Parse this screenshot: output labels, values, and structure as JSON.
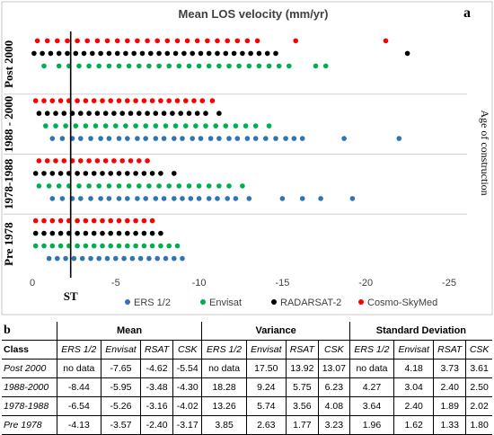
{
  "chart_data": {
    "type": "scatter",
    "title": "Mean LOS velocity (mm/yr)",
    "panel_label": "a",
    "right_label": "Age of construction",
    "reference_line_label": "ST",
    "reference_line_x": -2.3,
    "xlim": [
      0,
      -25
    ],
    "x_ticks": [
      "0",
      "-5",
      "-10",
      "-15",
      "-20",
      "-25"
    ],
    "groups": [
      "Post 2000",
      "1988 - 2000",
      "1978-1988",
      "Pre 1978"
    ],
    "series": [
      {
        "name": "ERS 1/2",
        "color": "#2e75b6",
        "data": {
          "Post 2000": [],
          "1988 - 2000": [
            -1.2,
            -1.8,
            -2.4,
            -2.9,
            -3.5,
            -4.1,
            -4.6,
            -5.2,
            -5.7,
            -6.3,
            -6.8,
            -7.4,
            -7.9,
            -8.5,
            -9.0,
            -9.6,
            -10.1,
            -10.7,
            -11.2,
            -11.8,
            -12.3,
            -12.9,
            -13.4,
            -14.0,
            -14.6,
            -15.2,
            -15.7,
            -16.2,
            -18.7,
            -22.0
          ],
          "1978-1988": [
            -1.2,
            -1.8,
            -2.4,
            -2.9,
            -3.5,
            -4.1,
            -4.6,
            -5.2,
            -5.7,
            -6.3,
            -6.8,
            -7.4,
            -7.9,
            -8.5,
            -9.0,
            -9.5,
            -10.0,
            -10.6,
            -11.1,
            -11.7,
            -12.2,
            -13.0,
            -15.0,
            -16.2,
            -17.3,
            -19.2
          ],
          "Pre 1978": [
            -1.0,
            -1.5,
            -2.0,
            -2.5,
            -3.0,
            -3.5,
            -4.0,
            -4.5,
            -5.0,
            -5.5,
            -6.0,
            -6.5,
            -7.0,
            -7.5,
            -8.0,
            -8.5,
            -9.0
          ]
        }
      },
      {
        "name": "Envisat",
        "color": "#00b050",
        "data": {
          "Post 2000": [
            -0.7,
            -1.6,
            -2.2,
            -2.8,
            -3.4,
            -4.0,
            -4.6,
            -5.2,
            -5.8,
            -6.4,
            -7.0,
            -7.6,
            -8.2,
            -8.8,
            -9.4,
            -10.0,
            -10.6,
            -11.2,
            -11.8,
            -12.4,
            -13.0,
            -13.6,
            -14.2,
            -14.8,
            -15.4,
            -17.0,
            -17.6
          ],
          "1988 - 2000": [
            -0.8,
            -1.4,
            -2.0,
            -2.6,
            -3.2,
            -3.8,
            -4.4,
            -5.0,
            -5.6,
            -6.2,
            -6.8,
            -7.4,
            -8.0,
            -8.6,
            -9.2,
            -9.8,
            -10.4,
            -11.0,
            -11.6,
            -12.2,
            -12.8,
            -13.4,
            -14.2
          ],
          "1978-1988": [
            -0.4,
            -1.0,
            -1.6,
            -2.2,
            -2.8,
            -3.4,
            -4.0,
            -4.6,
            -5.2,
            -5.8,
            -6.4,
            -7.0,
            -7.6,
            -8.2,
            -8.8,
            -9.4,
            -10.0,
            -10.6,
            -11.2,
            -11.8,
            -12.6
          ],
          "Pre 1978": [
            -0.2,
            -0.7,
            -1.2,
            -1.7,
            -2.2,
            -2.7,
            -3.2,
            -3.7,
            -4.2,
            -4.7,
            -5.2,
            -5.7,
            -6.2,
            -6.7,
            -7.2,
            -7.7,
            -8.2,
            -8.7
          ]
        }
      },
      {
        "name": "RADARSAT-2",
        "color": "#000000",
        "data": {
          "Post 2000": [
            -0.1,
            -0.6,
            -1.1,
            -1.6,
            -2.1,
            -2.6,
            -3.1,
            -3.6,
            -4.1,
            -4.6,
            -5.1,
            -5.6,
            -6.1,
            -6.6,
            -7.1,
            -7.6,
            -8.1,
            -8.6,
            -9.1,
            -9.6,
            -10.1,
            -10.6,
            -11.1,
            -11.6,
            -12.1,
            -12.6,
            -13.1,
            -13.6,
            -14.1,
            -14.6,
            -22.5
          ],
          "1988 - 2000": [
            -0.4,
            -0.9,
            -1.4,
            -1.9,
            -2.4,
            -2.9,
            -3.4,
            -3.9,
            -4.4,
            -4.9,
            -5.4,
            -5.9,
            -6.4,
            -6.9,
            -7.4,
            -7.9,
            -8.4,
            -8.9,
            -9.4,
            -9.9,
            -10.4,
            -11.2
          ],
          "1978-1988": [
            -0.2,
            -0.7,
            -1.2,
            -1.7,
            -2.2,
            -2.7,
            -3.2,
            -3.7,
            -4.2,
            -4.7,
            -5.2,
            -5.7,
            -6.2,
            -6.7,
            -7.2,
            -7.7,
            -8.5
          ],
          "Pre 1978": [
            -0.2,
            -0.7,
            -1.2,
            -1.7,
            -2.2,
            -2.7,
            -3.2,
            -3.7,
            -4.2,
            -4.7,
            -5.2,
            -5.7,
            -6.2,
            -6.7,
            -7.2,
            -7.7
          ]
        }
      },
      {
        "name": "Cosmo-SkyMed",
        "color": "#ff0000",
        "data": {
          "Post 2000": [
            -0.3,
            -0.9,
            -1.5,
            -2.1,
            -2.7,
            -3.3,
            -3.9,
            -4.5,
            -5.1,
            -5.7,
            -6.3,
            -6.9,
            -7.5,
            -8.1,
            -8.7,
            -9.3,
            -9.9,
            -10.5,
            -11.1,
            -11.7,
            -12.3,
            -12.9,
            -13.5,
            -15.8,
            -21.2
          ],
          "1988 - 2000": [
            -0.2,
            -0.7,
            -1.2,
            -1.7,
            -2.2,
            -2.7,
            -3.2,
            -3.7,
            -4.2,
            -4.7,
            -5.2,
            -5.7,
            -6.2,
            -6.7,
            -7.2,
            -7.7,
            -8.2,
            -8.7,
            -9.2,
            -9.7,
            -10.2,
            -10.8
          ],
          "1978-1988": [
            -0.4,
            -0.9,
            -1.4,
            -1.9,
            -2.4,
            -2.9,
            -3.4,
            -3.9,
            -4.4,
            -4.9,
            -5.4,
            -5.9,
            -6.4,
            -6.9
          ],
          "Pre 1978": [
            -0.2,
            -0.7,
            -1.2,
            -1.7,
            -2.2,
            -2.7,
            -3.2,
            -3.7,
            -4.2,
            -4.7,
            -5.2,
            -5.7,
            -6.2,
            -6.7,
            -7.2
          ]
        }
      }
    ],
    "grid": false,
    "legend_position": "bottom"
  },
  "table": {
    "panel_label": "b",
    "groups": [
      "Mean",
      "Variance",
      "Standard Deviation"
    ],
    "class_header": "Class",
    "sub_headers": [
      "ERS 1/2",
      "Envisat",
      "RSAT",
      "CSK"
    ],
    "rows": [
      {
        "class": "Post 2000",
        "values": [
          "no data",
          "-7.65",
          "-4.62",
          "-5.54",
          "no data",
          "17.50",
          "13.92",
          "13.07",
          "no data",
          "4.18",
          "3.73",
          "3.61"
        ]
      },
      {
        "class": "1988-2000",
        "values": [
          "-8.44",
          "-5.95",
          "-3.48",
          "-4.30",
          "18.28",
          "9.24",
          "5.75",
          "6.23",
          "4.27",
          "3.04",
          "2.40",
          "2.50"
        ]
      },
      {
        "class": "1978-1988",
        "values": [
          "-6.54",
          "-5.26",
          "-3.16",
          "-4.02",
          "13.26",
          "5.74",
          "3.56",
          "4.08",
          "3.64",
          "2.40",
          "1.89",
          "2.02"
        ]
      },
      {
        "class": "Pre 1978",
        "values": [
          "-4.13",
          "-3.57",
          "-2.40",
          "-3.17",
          "3.85",
          "2.63",
          "1.77",
          "3.23",
          "1.96",
          "1.62",
          "1.33",
          "1.80"
        ]
      }
    ]
  }
}
